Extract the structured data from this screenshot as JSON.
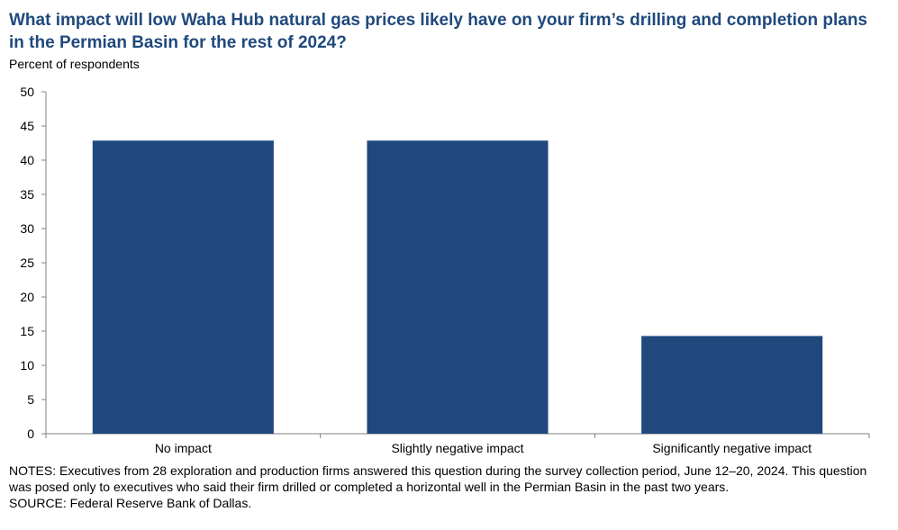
{
  "chart_data": {
    "type": "bar",
    "title": "What impact will low Waha Hub natural gas prices likely have on your firm’s drilling and completion plans in the Permian Basin for the rest of 2024?",
    "ylabel": "Percent of respondents",
    "xlabel": "",
    "categories": [
      "No impact",
      "Slightly negative impact",
      "Significantly negative impact"
    ],
    "values": [
      42.86,
      42.86,
      14.29
    ],
    "ylim": [
      0,
      50
    ],
    "yticks": [
      0,
      5,
      10,
      15,
      20,
      25,
      30,
      35,
      40,
      45,
      50
    ],
    "grid": false,
    "bar_color": "#1f497d"
  },
  "notes": "NOTES: Executives from 28 exploration and production firms answered this question during the survey collection period, June 12–20, 2024. This question was posed only to executives who said their firm drilled or completed a horizontal well in the Permian Basin in the past two years.",
  "source": "SOURCE: Federal Reserve Bank of Dallas."
}
